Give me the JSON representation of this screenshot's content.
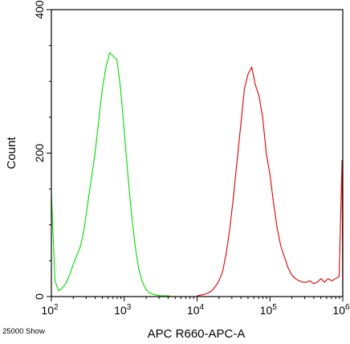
{
  "chart_data": {
    "type": "line",
    "title": "",
    "xlabel": "APC R660-APC-A",
    "ylabel": "Count",
    "x_scale": "log",
    "xlim": [
      100,
      1000000
    ],
    "ylim": [
      0,
      400
    ],
    "x_ticks": [
      {
        "value": 100,
        "base": "10",
        "exp": "2"
      },
      {
        "value": 1000,
        "base": "10",
        "exp": "3"
      },
      {
        "value": 10000,
        "base": "10",
        "exp": "4"
      },
      {
        "value": 100000,
        "base": "10",
        "exp": "5"
      },
      {
        "value": 1000000,
        "base": "10",
        "exp": "6"
      }
    ],
    "y_ticks": [
      0,
      200,
      400
    ],
    "y_tick_labels": [
      "0",
      "200",
      "400"
    ],
    "grid": false,
    "series": [
      {
        "name": "",
        "color": "#00dd00",
        "x": [
          100,
          112,
          126,
          141,
          158,
          178,
          200,
          224,
          251,
          282,
          316,
          355,
          398,
          447,
          501,
          562,
          631,
          708,
          794,
          891,
          1000,
          1122,
          1259,
          1413,
          1585,
          1778,
          1995,
          2239,
          2512,
          2818,
          3162,
          3548,
          3981,
          4467,
          5012,
          5623,
          6310,
          7079,
          7943,
          8913,
          10000
        ],
        "y": [
          145,
          22,
          8,
          12,
          18,
          30,
          45,
          58,
          70,
          95,
          130,
          165,
          200,
          245,
          290,
          320,
          340,
          335,
          330,
          290,
          230,
          170,
          115,
          70,
          38,
          20,
          10,
          5,
          3,
          2,
          1,
          1,
          1,
          0,
          0,
          0,
          0,
          0,
          0,
          0,
          0
        ]
      },
      {
        "name": "",
        "color": "#dd0000",
        "x": [
          10000,
          11220,
          12589,
          14125,
          15849,
          17783,
          19953,
          22387,
          25119,
          28184,
          31623,
          35481,
          39811,
          44668,
          50119,
          56234,
          63096,
          70795,
          79433,
          89125,
          100000,
          112202,
          125893,
          141254,
          158489,
          177828,
          199526,
          223872,
          251189,
          281838,
          316228,
          354813,
          398107,
          446684,
          501187,
          562341,
          630957,
          707946,
          794328,
          891251,
          977000,
          1000000
        ],
        "y": [
          1,
          2,
          3,
          5,
          8,
          14,
          22,
          35,
          60,
          95,
          140,
          190,
          240,
          290,
          310,
          320,
          295,
          280,
          250,
          200,
          170,
          130,
          95,
          70,
          55,
          40,
          30,
          25,
          22,
          20,
          20,
          22,
          18,
          20,
          25,
          20,
          25,
          22,
          25,
          28,
          190,
          0
        ]
      }
    ]
  },
  "footer_text": "25000 Show"
}
